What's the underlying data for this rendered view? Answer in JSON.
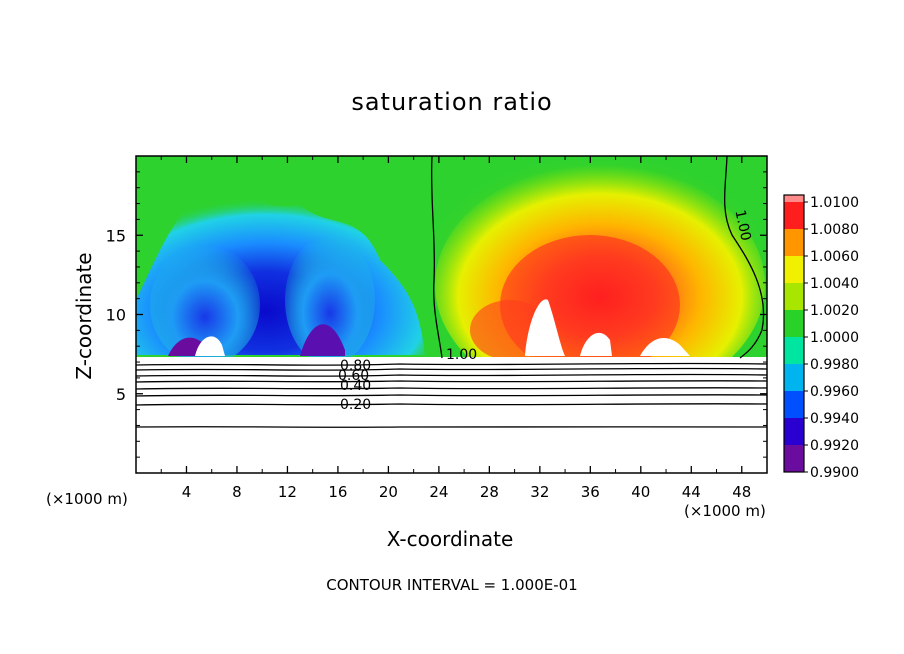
{
  "chart_data": {
    "type": "heatmap",
    "title": "saturation ratio",
    "xlabel": "X-coordinate",
    "ylabel": "Z-coordinate",
    "x_unit_label": "(×1000 m)",
    "footer": "CONTOUR INTERVAL = 1.000E-01",
    "xlim": [
      0,
      50
    ],
    "ylim": [
      0,
      20
    ],
    "x_ticks": [
      4,
      8,
      12,
      16,
      20,
      24,
      28,
      32,
      36,
      40,
      44,
      48
    ],
    "y_ticks": [
      5,
      10,
      15
    ],
    "colorbar": {
      "levels": [
        "0.9900",
        "0.9920",
        "0.9940",
        "0.9960",
        "0.9980",
        "1.0000",
        "1.0020",
        "1.0040",
        "1.0060",
        "1.0080",
        "1.0100"
      ],
      "colors": [
        "#6a0d9e",
        "#2a00d0",
        "#0050ff",
        "#00b4f0",
        "#00e6a0",
        "#28d228",
        "#a8e600",
        "#f0f000",
        "#ff9600",
        "#ff1e1e",
        "#ff8a8a"
      ]
    },
    "contours": [
      {
        "label": "1.00",
        "x": [
          23.4,
          23.2,
          23.5,
          23.3
        ],
        "y": [
          7.2,
          10.6,
          15.0,
          19.9
        ]
      },
      {
        "label": "1.00",
        "x": [
          47.5,
          49.5,
          47.2,
          46.5
        ],
        "y": [
          7.2,
          10.5,
          14.0,
          19.9
        ]
      },
      {
        "label": "0.80",
        "x": [
          0,
          50
        ],
        "y": [
          7.0,
          7.0
        ]
      },
      {
        "label": "0.60",
        "x": [
          0,
          50
        ],
        "y": [
          6.5,
          6.5
        ]
      },
      {
        "label": "0.40",
        "x": [
          0,
          50
        ],
        "y": [
          5.7,
          5.7
        ]
      },
      {
        "label": "0.20",
        "x": [
          0,
          50
        ],
        "y": [
          4.5,
          4.5
        ]
      },
      {
        "label": "",
        "x": [
          0,
          50
        ],
        "y": [
          2.9,
          2.9
        ]
      }
    ],
    "annotations": [
      "1.00",
      "1.00",
      "0.80",
      "0.60",
      "0.40",
      "0.20"
    ]
  }
}
